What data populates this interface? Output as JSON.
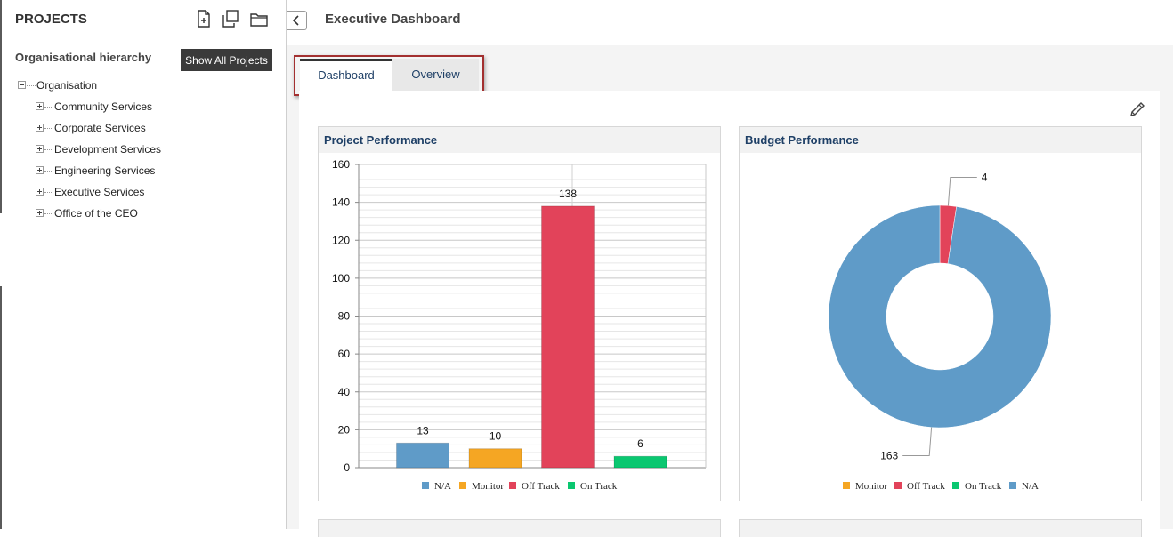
{
  "sidebar": {
    "title": "PROJECTS",
    "org_label": "Organisational hierarchy",
    "show_all_label": "Show All Projects",
    "root": "Organisation",
    "items": [
      {
        "label": "Community Services"
      },
      {
        "label": "Corporate Services"
      },
      {
        "label": "Development Services"
      },
      {
        "label": "Engineering Services"
      },
      {
        "label": "Executive Services"
      },
      {
        "label": "Office of the CEO"
      }
    ]
  },
  "header": {
    "title": "Executive Dashboard"
  },
  "tabs": [
    {
      "label": "Dashboard",
      "active": true
    },
    {
      "label": "Overview",
      "active": false
    }
  ],
  "panels": {
    "project_title": "Project Performance",
    "budget_title": "Budget Performance"
  },
  "colors": {
    "na": "#5f9bc8",
    "monitor": "#f5a623",
    "off_track": "#e2435a",
    "on_track": "#0ac770",
    "accent_text": "#1e3f66",
    "tab_highlight": "#a33030"
  },
  "chart_data": [
    {
      "type": "bar",
      "title": "Project Performance",
      "categories": [
        "N/A",
        "Monitor",
        "Off Track",
        "On Track"
      ],
      "values": [
        13,
        10,
        138,
        6
      ],
      "ylim": [
        0,
        160
      ],
      "yticks": [
        0,
        20,
        40,
        60,
        80,
        100,
        120,
        140,
        160
      ],
      "grid": true,
      "legend": "bottom",
      "legend_entries": [
        "N/A",
        "Monitor",
        "Off Track",
        "On Track"
      ]
    },
    {
      "type": "pie",
      "title": "Budget Performance",
      "donut": true,
      "slices": [
        {
          "label": "Monitor",
          "value": 0
        },
        {
          "label": "Off Track",
          "value": 4
        },
        {
          "label": "On Track",
          "value": 0
        },
        {
          "label": "N/A",
          "value": 163
        }
      ],
      "legend": "bottom",
      "legend_entries": [
        "Monitor",
        "Off Track",
        "On Track",
        "N/A"
      ]
    }
  ]
}
